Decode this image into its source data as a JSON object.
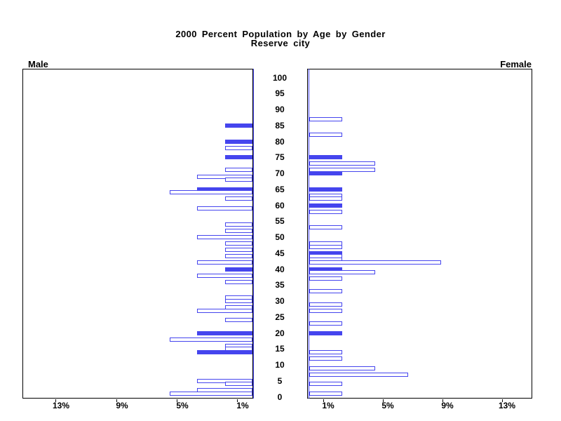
{
  "title": {
    "line1": "2000 Percent Population by Age by Gender",
    "line2": "Reserve city"
  },
  "headers": {
    "male": "Male",
    "female": "Female"
  },
  "colors": {
    "bar_blue": "#4545EE",
    "axis_black": "#000000",
    "background": "#FFFFFF"
  },
  "age_axis": {
    "labels_bottom_to_top": [
      "0",
      "5",
      "10",
      "15",
      "20",
      "25",
      "30",
      "35",
      "40",
      "45",
      "50",
      "55",
      "60",
      "65",
      "70",
      "75",
      "80",
      "85",
      "90",
      "95",
      "100"
    ],
    "step": 5
  },
  "x_axis": {
    "male_labels": [
      "13%",
      "9%",
      "5%",
      "1%"
    ],
    "female_labels": [
      "1%",
      "5%",
      "9%",
      "13%"
    ]
  },
  "chart_data": {
    "type": "bar",
    "subtype": "population-pyramid",
    "title": "2000 Percent Population by Age by Gender",
    "subtitle": "Reserve city",
    "value_units": "percent of gender population",
    "x_ticks_pct": [
      1,
      5,
      9,
      13
    ],
    "x_range_pct": [
      0,
      15
    ],
    "age_range": [
      0,
      100
    ],
    "age_tick_step": 5,
    "legend": "solid bars are filled blue, others outlined blue on white",
    "series": [
      {
        "name": "Male",
        "side": "left",
        "unit_pct": 1.85,
        "points": [
          {
            "age": 85,
            "pct": 1.85,
            "filled": true
          },
          {
            "age": 80,
            "pct": 1.85,
            "filled": true
          },
          {
            "age": 78,
            "pct": 1.85,
            "filled": false
          },
          {
            "age": 75,
            "pct": 1.85,
            "filled": true
          },
          {
            "age": 71,
            "pct": 1.85,
            "filled": false
          },
          {
            "age": 69,
            "pct": 3.7,
            "filled": false
          },
          {
            "age": 68,
            "pct": 1.85,
            "filled": false
          },
          {
            "age": 65,
            "pct": 3.7,
            "filled": true
          },
          {
            "age": 64,
            "pct": 5.55,
            "filled": false
          },
          {
            "age": 62,
            "pct": 1.85,
            "filled": false
          },
          {
            "age": 59,
            "pct": 3.7,
            "filled": false
          },
          {
            "age": 54,
            "pct": 1.85,
            "filled": false
          },
          {
            "age": 52,
            "pct": 1.85,
            "filled": false
          },
          {
            "age": 50,
            "pct": 3.7,
            "filled": false
          },
          {
            "age": 48,
            "pct": 1.85,
            "filled": false
          },
          {
            "age": 46,
            "pct": 1.85,
            "filled": false
          },
          {
            "age": 44,
            "pct": 1.85,
            "filled": false
          },
          {
            "age": 42,
            "pct": 3.7,
            "filled": false
          },
          {
            "age": 40,
            "pct": 1.85,
            "filled": true
          },
          {
            "age": 38,
            "pct": 3.7,
            "filled": false
          },
          {
            "age": 36,
            "pct": 1.85,
            "filled": false
          },
          {
            "age": 31,
            "pct": 1.85,
            "filled": false
          },
          {
            "age": 30,
            "pct": 1.85,
            "filled": false
          },
          {
            "age": 28,
            "pct": 1.85,
            "filled": false
          },
          {
            "age": 27,
            "pct": 3.7,
            "filled": false
          },
          {
            "age": 24,
            "pct": 1.85,
            "filled": false
          },
          {
            "age": 20,
            "pct": 3.7,
            "filled": true
          },
          {
            "age": 18,
            "pct": 5.55,
            "filled": false
          },
          {
            "age": 16,
            "pct": 1.85,
            "filled": false
          },
          {
            "age": 15,
            "pct": 1.85,
            "filled": false
          },
          {
            "age": 14,
            "pct": 3.7,
            "filled": true
          },
          {
            "age": 5,
            "pct": 3.7,
            "filled": false
          },
          {
            "age": 4,
            "pct": 1.85,
            "filled": false
          },
          {
            "age": 2,
            "pct": 3.7,
            "filled": false
          },
          {
            "age": 1,
            "pct": 5.55,
            "filled": false
          }
        ]
      },
      {
        "name": "Female",
        "side": "right",
        "unit_pct": 2.24,
        "points": [
          {
            "age": 87,
            "pct": 2.24,
            "filled": false
          },
          {
            "age": 82,
            "pct": 2.24,
            "filled": false
          },
          {
            "age": 75,
            "pct": 2.24,
            "filled": true
          },
          {
            "age": 73,
            "pct": 4.48,
            "filled": false
          },
          {
            "age": 71,
            "pct": 4.48,
            "filled": false
          },
          {
            "age": 70,
            "pct": 2.24,
            "filled": true
          },
          {
            "age": 65,
            "pct": 2.24,
            "filled": true
          },
          {
            "age": 63,
            "pct": 2.24,
            "filled": false
          },
          {
            "age": 62,
            "pct": 2.24,
            "filled": false
          },
          {
            "age": 60,
            "pct": 2.24,
            "filled": true
          },
          {
            "age": 58,
            "pct": 2.24,
            "filled": false
          },
          {
            "age": 53,
            "pct": 2.24,
            "filled": false
          },
          {
            "age": 48,
            "pct": 2.24,
            "filled": false
          },
          {
            "age": 47,
            "pct": 2.24,
            "filled": false
          },
          {
            "age": 45,
            "pct": 2.24,
            "filled": true
          },
          {
            "age": 44,
            "pct": 2.24,
            "filled": false
          },
          {
            "age": 43,
            "pct": 2.24,
            "filled": false
          },
          {
            "age": 42,
            "pct": 8.96,
            "filled": false
          },
          {
            "age": 40,
            "pct": 2.24,
            "filled": true
          },
          {
            "age": 39,
            "pct": 4.48,
            "filled": false
          },
          {
            "age": 37,
            "pct": 2.24,
            "filled": false
          },
          {
            "age": 33,
            "pct": 2.24,
            "filled": false
          },
          {
            "age": 29,
            "pct": 2.24,
            "filled": false
          },
          {
            "age": 27,
            "pct": 2.24,
            "filled": false
          },
          {
            "age": 23,
            "pct": 2.24,
            "filled": false
          },
          {
            "age": 20,
            "pct": 2.24,
            "filled": true
          },
          {
            "age": 14,
            "pct": 2.24,
            "filled": false
          },
          {
            "age": 12,
            "pct": 2.24,
            "filled": false
          },
          {
            "age": 9,
            "pct": 4.48,
            "filled": false
          },
          {
            "age": 7,
            "pct": 6.72,
            "filled": false
          },
          {
            "age": 4,
            "pct": 2.24,
            "filled": false
          },
          {
            "age": 1,
            "pct": 2.24,
            "filled": false
          }
        ]
      }
    ]
  }
}
